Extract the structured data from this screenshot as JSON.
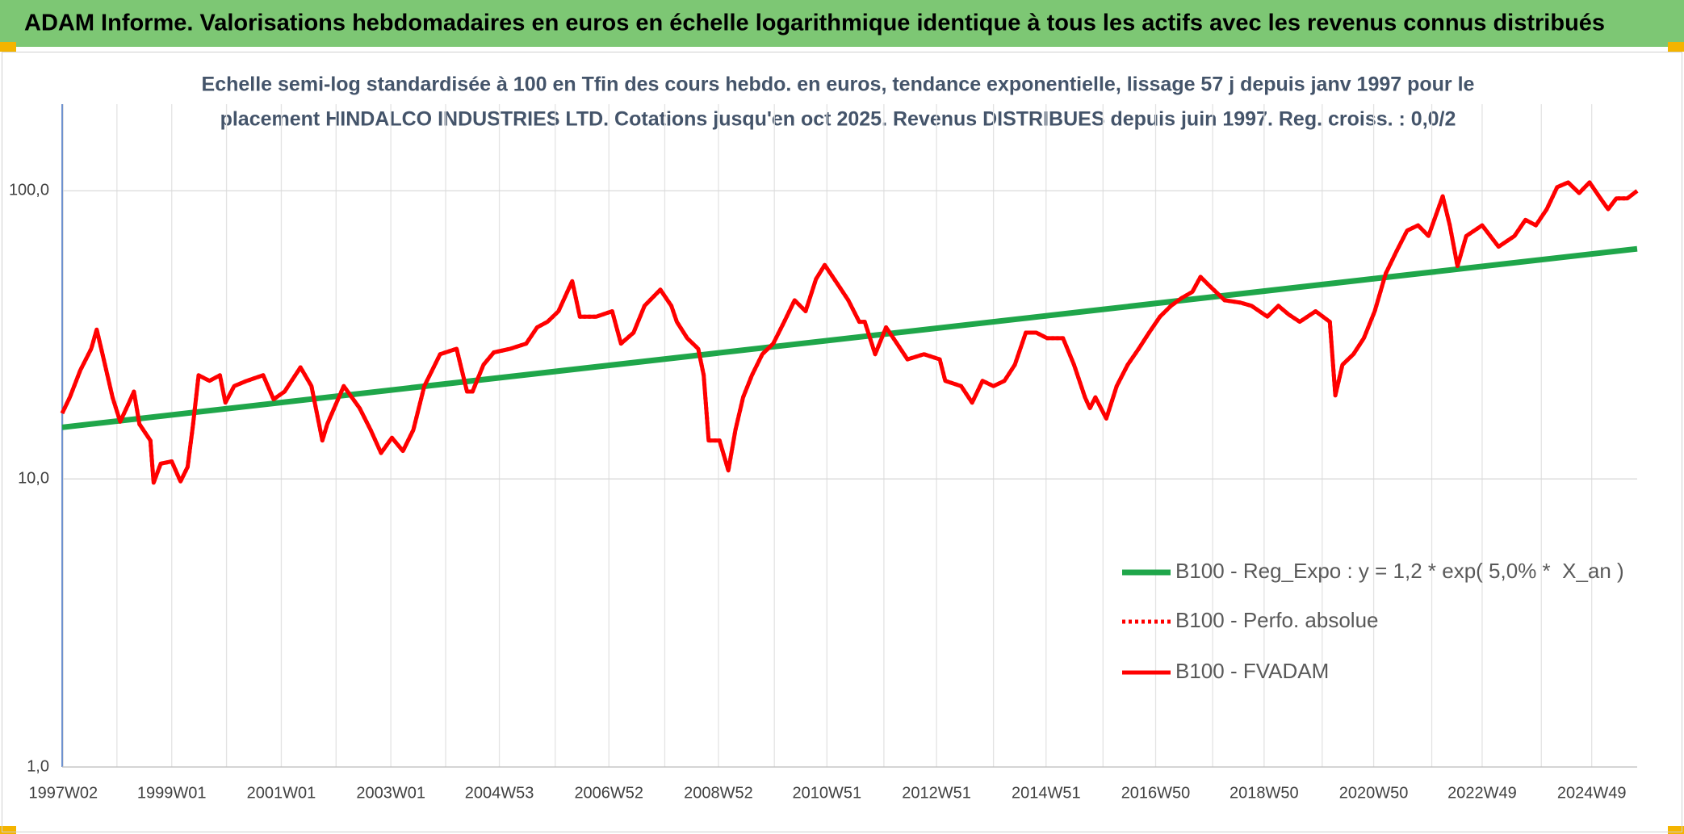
{
  "chart_data": {
    "type": "line",
    "title": "ADAM Informe. Valorisations hebdomadaires en euros en échelle logarithmique identique à tous les actifs avec les revenus connus distribués",
    "subtitle": [
      "Echelle semi-log standardisée à 100 en Tfin des cours hebdo. en euros, tendance exponentielle, lissage 57 j depuis janv 1997 pour le",
      "placement HINDALCO INDUSTRIES LTD. Cotations jusqu'en oct 2025. Revenus DISTRIBUES depuis juin 1997. Reg. croiss. : 0,0/2"
    ],
    "log_y": true,
    "grid": true,
    "legend": "right",
    "xlim": [
      1997.0,
      2025.75
    ],
    "ylim": [
      1,
      200
    ],
    "yticks": [
      {
        "value": 1,
        "label": "1,0"
      },
      {
        "value": 10,
        "label": "10,0"
      },
      {
        "value": 100,
        "label": "100,0"
      }
    ],
    "xticks": [
      {
        "value": 1997.02,
        "label": "1997W02"
      },
      {
        "value": 1999.0,
        "label": "1999W01"
      },
      {
        "value": 2001.0,
        "label": "2001W01"
      },
      {
        "value": 2003.0,
        "label": "2003W01"
      },
      {
        "value": 2004.98,
        "label": "2004W53"
      },
      {
        "value": 2006.98,
        "label": "2006W52"
      },
      {
        "value": 2008.98,
        "label": "2008W52"
      },
      {
        "value": 2010.96,
        "label": "2010W51"
      },
      {
        "value": 2012.96,
        "label": "2012W51"
      },
      {
        "value": 2014.96,
        "label": "2014W51"
      },
      {
        "value": 2016.96,
        "label": "2016W50"
      },
      {
        "value": 2018.94,
        "label": "2018W50"
      },
      {
        "value": 2020.94,
        "label": "2020W50"
      },
      {
        "value": 2022.92,
        "label": "2022W49"
      },
      {
        "value": 2024.92,
        "label": "2024W49"
      }
    ],
    "xgrid": [
      1998,
      2000,
      2002,
      2004,
      2006,
      2008,
      2010,
      2012,
      2014,
      2016,
      2018,
      2020,
      2022,
      2024
    ],
    "series": [
      {
        "name": "B100 - Reg_Expo : y = 1,2 * exp( 5,0% *  X_an )",
        "color": "#1fa64a",
        "style": "solid",
        "x": [
          1997.0,
          2025.75
        ],
        "values": [
          15.1,
          62.9
        ]
      },
      {
        "name": "B100 - Perfo. absolue",
        "color": "#ff0000",
        "style": "dotted",
        "x": [
          1997.0,
          1997.14,
          1997.33,
          1997.53,
          1997.63,
          1997.73,
          1997.92,
          1998.06,
          1998.22,
          1998.31,
          1998.41,
          1998.61,
          1998.67,
          1998.8,
          1999.0,
          1999.16,
          1999.29,
          1999.39,
          1999.49,
          1999.69,
          1999.88,
          1999.98,
          2000.14,
          2000.37,
          2000.67,
          2000.86,
          2001.06,
          2001.35,
          2001.55,
          2001.75,
          2001.84,
          2002.14,
          2002.43,
          2002.63,
          2002.82,
          2003.02,
          2003.22,
          2003.41,
          2003.61,
          2003.71,
          2003.9,
          2004.2,
          2004.39,
          2004.49,
          2004.69,
          2004.88,
          2005.18,
          2005.47,
          2005.67,
          2005.86,
          2006.06,
          2006.31,
          2006.45,
          2006.75,
          2007.04,
          2007.2,
          2007.43,
          2007.63,
          2007.92,
          2008.12,
          2008.22,
          2008.41,
          2008.61,
          2008.71,
          2008.8,
          2009.0,
          2009.16,
          2009.29,
          2009.43,
          2009.59,
          2009.78,
          2009.98,
          2010.18,
          2010.37,
          2010.57,
          2010.76,
          2010.92,
          2011.16,
          2011.35,
          2011.55,
          2011.65,
          2011.84,
          2012.04,
          2012.24,
          2012.43,
          2012.73,
          2013.02,
          2013.12,
          2013.41,
          2013.61,
          2013.8,
          2014.0,
          2014.2,
          2014.39,
          2014.59,
          2014.78,
          2014.98,
          2015.27,
          2015.47,
          2015.67,
          2015.76,
          2015.86,
          2016.06,
          2016.25,
          2016.45,
          2016.65,
          2016.84,
          2017.04,
          2017.24,
          2017.43,
          2017.63,
          2017.78,
          2017.92,
          2018.22,
          2018.51,
          2018.71,
          2019.0,
          2019.2,
          2019.39,
          2019.59,
          2019.88,
          2020.14,
          2020.24,
          2020.37,
          2020.57,
          2020.76,
          2020.96,
          2021.16,
          2021.35,
          2021.55,
          2021.75,
          2021.94,
          2022.2,
          2022.33,
          2022.47,
          2022.63,
          2022.92,
          2023.22,
          2023.51,
          2023.71,
          2023.9,
          2024.1,
          2024.29,
          2024.49,
          2024.69,
          2024.88,
          2025.08,
          2025.22,
          2025.37,
          2025.57,
          2025.75
        ],
        "values": [
          16.9,
          19.2,
          23.8,
          28.3,
          33.0,
          27.5,
          19.2,
          15.8,
          18.4,
          20.1,
          15.5,
          13.6,
          9.7,
          11.3,
          11.5,
          9.8,
          11.0,
          15.5,
          22.9,
          21.9,
          22.9,
          18.4,
          21.0,
          21.9,
          22.9,
          18.9,
          20.1,
          24.4,
          21.0,
          13.6,
          15.5,
          21.0,
          17.6,
          14.8,
          12.3,
          13.9,
          12.5,
          14.8,
          21.0,
          22.9,
          27.1,
          28.3,
          20.1,
          20.1,
          24.9,
          27.5,
          28.3,
          29.5,
          33.6,
          35.1,
          38.2,
          48.6,
          36.6,
          36.6,
          38.2,
          29.5,
          32.2,
          39.9,
          45.4,
          39.9,
          35.1,
          30.8,
          28.3,
          22.9,
          13.6,
          13.6,
          10.7,
          14.8,
          19.2,
          22.9,
          27.1,
          29.5,
          35.1,
          41.7,
          38.2,
          49.4,
          55.3,
          47.3,
          41.7,
          35.1,
          35.1,
          27.1,
          33.6,
          29.5,
          26.0,
          27.1,
          26.0,
          21.9,
          21.0,
          18.4,
          21.9,
          21.0,
          21.9,
          24.9,
          32.2,
          32.2,
          30.8,
          30.8,
          24.9,
          19.2,
          17.6,
          19.2,
          16.2,
          21.0,
          24.9,
          28.3,
          32.2,
          36.6,
          39.9,
          42.4,
          44.6,
          50.3,
          47.3,
          41.7,
          40.9,
          39.9,
          36.6,
          39.9,
          37.2,
          35.1,
          38.2,
          35.1,
          19.5,
          24.9,
          27.1,
          30.8,
          38.2,
          51.6,
          61.3,
          72.8,
          75.9,
          69.7,
          95.8,
          75.9,
          54.8,
          69.7,
          75.9,
          64.0,
          69.7,
          79.3,
          75.9,
          86.4,
          103,
          107,
          98.3,
          107,
          94.2,
          86.4,
          94.2,
          94.2,
          100
        ]
      },
      {
        "name": "B100 - FVADAM",
        "color": "#ff0000",
        "style": "solid",
        "x": [
          1997.0,
          1997.14,
          1997.33,
          1997.53,
          1997.63,
          1997.73,
          1997.92,
          1998.06,
          1998.22,
          1998.31,
          1998.41,
          1998.61,
          1998.67,
          1998.8,
          1999.0,
          1999.16,
          1999.29,
          1999.39,
          1999.49,
          1999.69,
          1999.88,
          1999.98,
          2000.14,
          2000.37,
          2000.67,
          2000.86,
          2001.06,
          2001.35,
          2001.55,
          2001.75,
          2001.84,
          2002.14,
          2002.43,
          2002.63,
          2002.82,
          2003.02,
          2003.22,
          2003.41,
          2003.61,
          2003.71,
          2003.9,
          2004.2,
          2004.39,
          2004.49,
          2004.69,
          2004.88,
          2005.18,
          2005.47,
          2005.67,
          2005.86,
          2006.06,
          2006.31,
          2006.45,
          2006.75,
          2007.04,
          2007.2,
          2007.43,
          2007.63,
          2007.92,
          2008.12,
          2008.22,
          2008.41,
          2008.61,
          2008.71,
          2008.8,
          2009.0,
          2009.16,
          2009.29,
          2009.43,
          2009.59,
          2009.78,
          2009.98,
          2010.18,
          2010.37,
          2010.57,
          2010.76,
          2010.92,
          2011.16,
          2011.35,
          2011.55,
          2011.65,
          2011.84,
          2012.04,
          2012.24,
          2012.43,
          2012.73,
          2013.02,
          2013.12,
          2013.41,
          2013.61,
          2013.8,
          2014.0,
          2014.2,
          2014.39,
          2014.59,
          2014.78,
          2014.98,
          2015.27,
          2015.47,
          2015.67,
          2015.76,
          2015.86,
          2016.06,
          2016.25,
          2016.45,
          2016.65,
          2016.84,
          2017.04,
          2017.24,
          2017.43,
          2017.63,
          2017.78,
          2017.92,
          2018.22,
          2018.51,
          2018.71,
          2019.0,
          2019.2,
          2019.39,
          2019.59,
          2019.88,
          2020.14,
          2020.24,
          2020.37,
          2020.57,
          2020.76,
          2020.96,
          2021.16,
          2021.35,
          2021.55,
          2021.75,
          2021.94,
          2022.2,
          2022.33,
          2022.47,
          2022.63,
          2022.92,
          2023.22,
          2023.51,
          2023.71,
          2023.9,
          2024.1,
          2024.29,
          2024.49,
          2024.69,
          2024.88,
          2025.08,
          2025.22,
          2025.37,
          2025.57,
          2025.75
        ],
        "values": [
          16.9,
          19.2,
          23.8,
          28.3,
          33.0,
          27.5,
          19.2,
          15.8,
          18.4,
          20.1,
          15.5,
          13.6,
          9.7,
          11.3,
          11.5,
          9.8,
          11.0,
          15.5,
          22.9,
          21.9,
          22.9,
          18.4,
          21.0,
          21.9,
          22.9,
          18.9,
          20.1,
          24.4,
          21.0,
          13.6,
          15.5,
          21.0,
          17.6,
          14.8,
          12.3,
          13.9,
          12.5,
          14.8,
          21.0,
          22.9,
          27.1,
          28.3,
          20.1,
          20.1,
          24.9,
          27.5,
          28.3,
          29.5,
          33.6,
          35.1,
          38.2,
          48.6,
          36.6,
          36.6,
          38.2,
          29.5,
          32.2,
          39.9,
          45.4,
          39.9,
          35.1,
          30.8,
          28.3,
          22.9,
          13.6,
          13.6,
          10.7,
          14.8,
          19.2,
          22.9,
          27.1,
          29.5,
          35.1,
          41.7,
          38.2,
          49.4,
          55.3,
          47.3,
          41.7,
          35.1,
          35.1,
          27.1,
          33.6,
          29.5,
          26.0,
          27.1,
          26.0,
          21.9,
          21.0,
          18.4,
          21.9,
          21.0,
          21.9,
          24.9,
          32.2,
          32.2,
          30.8,
          30.8,
          24.9,
          19.2,
          17.6,
          19.2,
          16.2,
          21.0,
          24.9,
          28.3,
          32.2,
          36.6,
          39.9,
          42.4,
          44.6,
          50.3,
          47.3,
          41.7,
          40.9,
          39.9,
          36.6,
          39.9,
          37.2,
          35.1,
          38.2,
          35.1,
          19.5,
          24.9,
          27.1,
          30.8,
          38.2,
          51.6,
          61.3,
          72.8,
          75.9,
          69.7,
          95.8,
          75.9,
          54.8,
          69.7,
          75.9,
          64.0,
          69.7,
          79.3,
          75.9,
          86.4,
          103,
          107,
          98.3,
          107,
          94.2,
          86.4,
          94.2,
          94.2,
          100
        ]
      }
    ]
  }
}
